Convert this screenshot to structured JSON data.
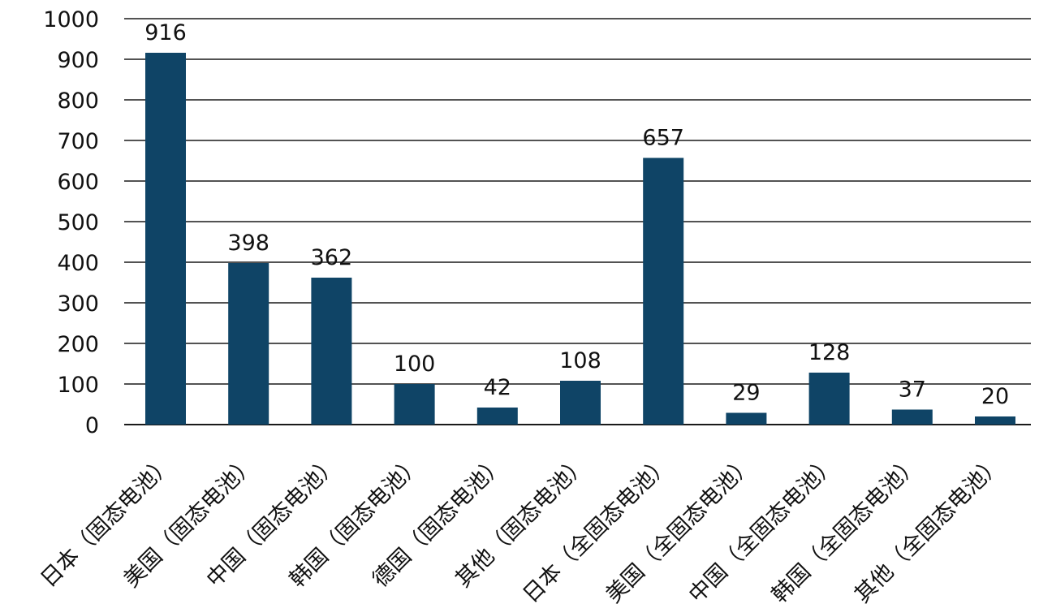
{
  "chart_data": {
    "type": "bar",
    "categories": [
      "日本（固态电池）",
      "美国（固态电池）",
      "中国（固态电池）",
      "韩国（固态电池）",
      "德国（固态电池）",
      "其他（固态电池）",
      "日本（全固态电池）",
      "美国（全固态电池）",
      "中国（全固态电池）",
      "韩国（全固态电池）",
      "其他（全固态电池）"
    ],
    "values": [
      916,
      398,
      362,
      100,
      42,
      108,
      657,
      29,
      128,
      37,
      20
    ],
    "value_labels": [
      "916",
      "398",
      "362",
      "100",
      "42",
      "108",
      "657",
      "29",
      "128",
      "37",
      "20"
    ],
    "yticks": [
      "0",
      "100",
      "200",
      "300",
      "400",
      "500",
      "600",
      "700",
      "800",
      "900",
      "1000"
    ],
    "ylim": [
      0,
      1000
    ],
    "grid": true,
    "legend": "none",
    "title": "",
    "xlabel": "",
    "ylabel": "",
    "colors": {
      "bar": "#0f4466",
      "text": "#111111",
      "grid": "#1a1a1a"
    }
  }
}
